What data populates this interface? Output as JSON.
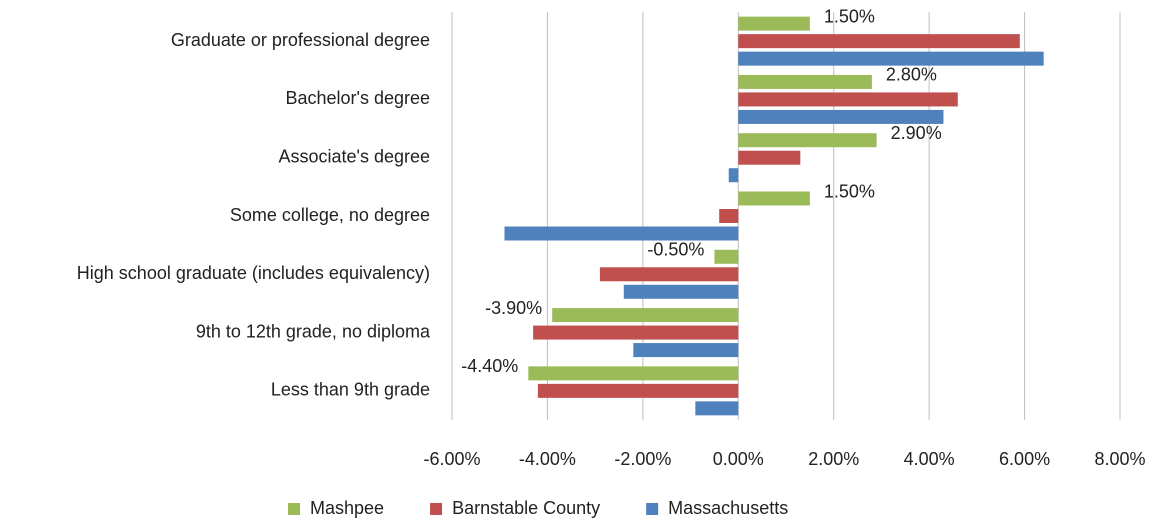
{
  "chart_data": {
    "type": "hbar",
    "categories": [
      "Graduate or professional degree",
      "Bachelor's degree",
      "Associate's degree",
      "Some college, no degree",
      "High school graduate (includes equivalency)",
      "9th to 12th grade, no diploma",
      "Less than 9th grade"
    ],
    "series": [
      {
        "name": "Mashpee",
        "color": "#9bbb59",
        "values": [
          1.5,
          2.8,
          2.9,
          1.5,
          -0.5,
          -3.9,
          -4.4
        ],
        "value_labels": [
          "1.50%",
          "2.80%",
          "2.90%",
          "1.50%",
          "-0.50%",
          "-3.90%",
          "-4.40%"
        ]
      },
      {
        "name": "Barnstable County",
        "color": "#c0504d",
        "values": [
          5.9,
          4.6,
          1.3,
          -0.4,
          -2.9,
          -4.3,
          -4.2
        ]
      },
      {
        "name": "Massachusetts",
        "color": "#4f81bd",
        "values": [
          6.4,
          4.3,
          -0.2,
          -4.9,
          -2.4,
          -2.2,
          -0.9
        ]
      }
    ],
    "xlim": [
      -6,
      8
    ],
    "xticks": [
      {
        "value": -6,
        "label": "-6.00%"
      },
      {
        "value": -4,
        "label": "-4.00%"
      },
      {
        "value": -2,
        "label": "-2.00%"
      },
      {
        "value": 0,
        "label": "0.00%"
      },
      {
        "value": 2,
        "label": "2.00%"
      },
      {
        "value": 4,
        "label": "4.00%"
      },
      {
        "value": 6,
        "label": "6.00%"
      },
      {
        "value": 8,
        "label": "8.00%"
      }
    ],
    "grid": true,
    "legend": "bottom"
  }
}
